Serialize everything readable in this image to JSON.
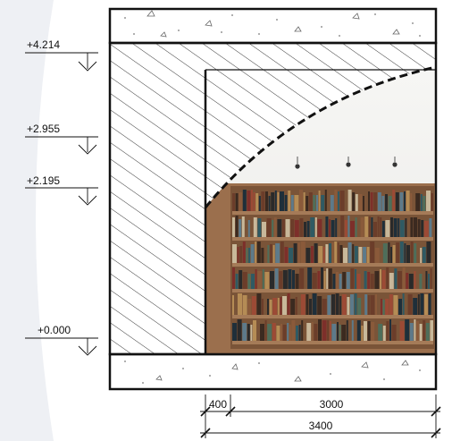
{
  "section": {
    "levels": [
      {
        "id": "top",
        "label": "+4.214"
      },
      {
        "id": "upper",
        "label": "+2.955"
      },
      {
        "id": "lower",
        "label": "+2.195"
      },
      {
        "id": "floor",
        "label": "+0.000"
      }
    ],
    "dimensions": {
      "wall": "400",
      "opening": "3000",
      "total": "3400"
    }
  }
}
